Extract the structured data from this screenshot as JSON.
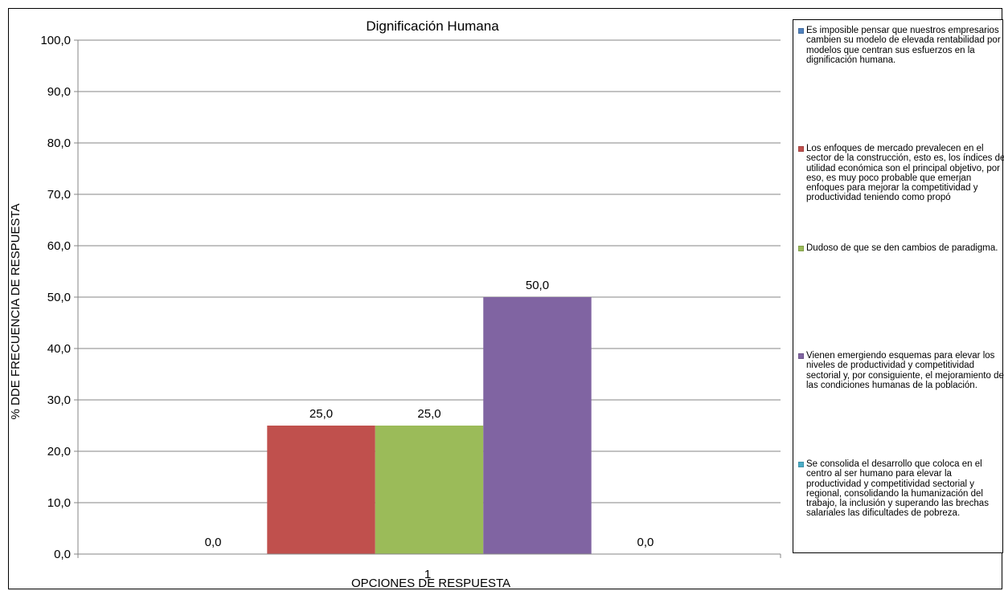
{
  "chart_data": {
    "type": "bar",
    "title": "Dignificación Humana",
    "xlabel": "OPCIONES DE RESPUESTA",
    "ylabel": "% DDE FRECUENCIA DE RESPUESTA",
    "categories": [
      "1"
    ],
    "ylim": [
      0,
      100
    ],
    "yticks": [
      "0,0",
      "10,0",
      "20,0",
      "30,0",
      "40,0",
      "50,0",
      "60,0",
      "70,0",
      "80,0",
      "90,0",
      "100,0"
    ],
    "grid": true,
    "legend_position": "right",
    "series": [
      {
        "name": "Es imposible pensar que nuestros empresarios cambien su modelo de elevada rentabilidad por modelos que centran sus esfuerzos en la dignificación humana.",
        "values": [
          0.0
        ],
        "label": "0,0",
        "color": "#4f81bd"
      },
      {
        "name": "Los enfoques de mercado prevalecen en el sector de la construcción, esto es, los índices de utilidad económica son el principal objetivo, por eso, es muy poco probable que emerjan enfoques para mejorar la competitividad y productividad teniendo como propó",
        "values": [
          25.0
        ],
        "label": "25,0",
        "color": "#c0504d"
      },
      {
        "name": "Dudoso de que se den cambios de paradigma.",
        "values": [
          25.0
        ],
        "label": "25,0",
        "color": "#9bbb59"
      },
      {
        "name": "Vienen emergiendo esquemas para elevar los niveles de productividad y competitividad sectorial y, por consiguiente, el mejoramiento de las condiciones humanas de la población.",
        "values": [
          50.0
        ],
        "label": "50,0",
        "color": "#8064a2"
      },
      {
        "name": "Se consolida el desarrollo que coloca en el centro al ser humano para elevar la productividad y competitividad sectorial y regional, consolidando la humanización del trabajo, la inclusión y superando las brechas salariales las dificultades de pobreza.",
        "values": [
          0.0
        ],
        "label": "0,0",
        "color": "#4bacc6"
      }
    ]
  }
}
